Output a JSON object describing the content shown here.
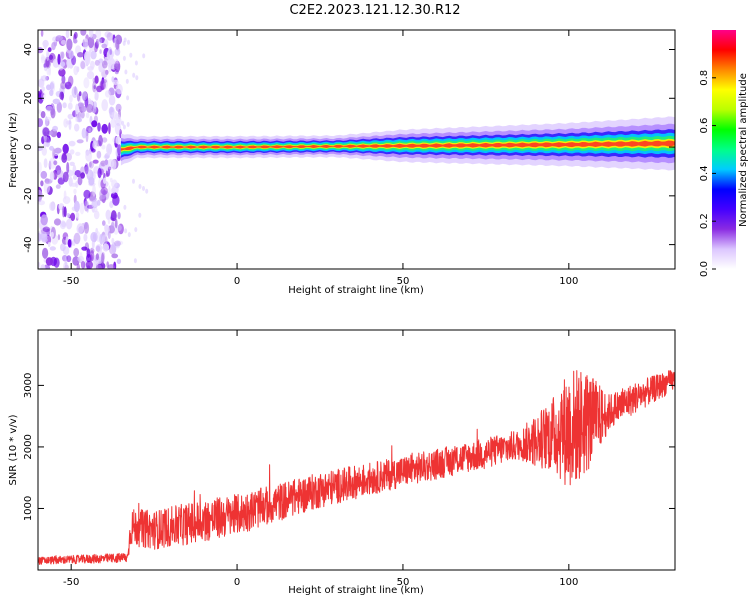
{
  "figure": {
    "title": "C2E2.2023.121.12.30.R12",
    "colors": {
      "signal": "#ee3333",
      "axis": "#000000",
      "background": "#ffffff"
    }
  },
  "chart_data": [
    {
      "type": "heatmap",
      "xlabel": "Height of straight line (km)",
      "ylabel": "Frequency (Hz)",
      "xlim": [
        -60,
        132
      ],
      "ylim": [
        -50,
        48
      ],
      "xticks": [
        -50,
        0,
        50,
        100
      ],
      "yticks": [
        -40,
        -20,
        0,
        20,
        40
      ],
      "grid": false,
      "noise_region": {
        "x_range": [
          -60,
          -35
        ],
        "y_range": [
          -50,
          48
        ],
        "description": "scattered purple speckle"
      },
      "ridge": {
        "center_hz": [
          [
            -35,
            -1
          ],
          [
            -30,
            0
          ],
          [
            0,
            0
          ],
          [
            50,
            0.5
          ],
          [
            100,
            1
          ],
          [
            132,
            1.5
          ]
        ],
        "half_width_hz": [
          [
            -35,
            3
          ],
          [
            -30,
            2
          ],
          [
            0,
            2
          ],
          [
            30,
            2
          ],
          [
            50,
            3
          ],
          [
            100,
            4
          ],
          [
            132,
            5
          ]
        ]
      },
      "colorbar": {
        "label": "Normalized spectral amplitude",
        "range": [
          0,
          1
        ],
        "ticks": [
          0.0,
          0.2,
          0.4,
          0.6,
          0.8
        ],
        "colormap": [
          "#ffffff",
          "#dcc6ff",
          "#8a2be2",
          "#4400ff",
          "#0000ff",
          "#00ccff",
          "#00ff88",
          "#00ff00",
          "#bbff00",
          "#ffff00",
          "#ff8800",
          "#ff0000",
          "#ff0088"
        ]
      }
    },
    {
      "type": "line",
      "xlabel": "Height of straight line (km)",
      "ylabel": "SNR (10 * v/v)",
      "xlim": [
        -60,
        132
      ],
      "ylim": [
        0,
        3900
      ],
      "xticks": [
        -50,
        0,
        50,
        100
      ],
      "yticks": [
        1000,
        2000,
        3000
      ],
      "grid": false,
      "series": [
        {
          "color": "#ee3333",
          "trend": [
            [
              -60,
              150
            ],
            [
              -33,
              200
            ],
            [
              -32,
              700
            ],
            [
              -25,
              650
            ],
            [
              0,
              900
            ],
            [
              25,
              1300
            ],
            [
              50,
              1600
            ],
            [
              75,
              1900
            ],
            [
              90,
              2100
            ],
            [
              100,
              2300
            ],
            [
              110,
              2500
            ],
            [
              120,
              2800
            ],
            [
              132,
              3100
            ]
          ],
          "amplitude": [
            [
              -60,
              60
            ],
            [
              -33,
              80
            ],
            [
              -32,
              300
            ],
            [
              -10,
              350
            ],
            [
              0,
              330
            ],
            [
              50,
              250
            ],
            [
              85,
              250
            ],
            [
              95,
              600
            ],
            [
              100,
              1000
            ],
            [
              105,
              900
            ],
            [
              112,
              300
            ],
            [
              132,
              180
            ]
          ]
        }
      ]
    }
  ]
}
